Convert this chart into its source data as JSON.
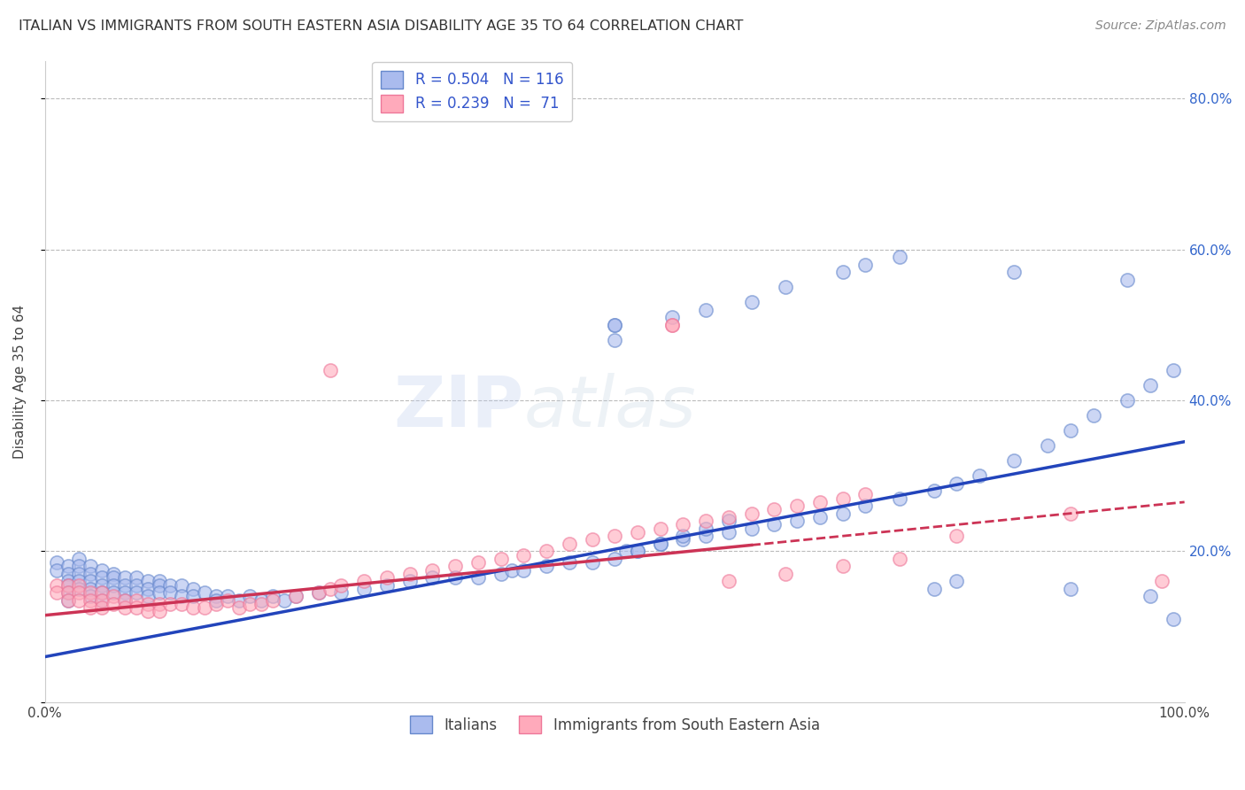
{
  "title": "ITALIAN VS IMMIGRANTS FROM SOUTH EASTERN ASIA DISABILITY AGE 35 TO 64 CORRELATION CHART",
  "source": "Source: ZipAtlas.com",
  "ylabel": "Disability Age 35 to 64",
  "xlim": [
    0.0,
    1.0
  ],
  "ylim": [
    0.0,
    0.85
  ],
  "ytick_vals": [
    0.0,
    0.2,
    0.4,
    0.6,
    0.8
  ],
  "ytick_labels": [
    "",
    "20.0%",
    "40.0%",
    "60.0%",
    "80.0%"
  ],
  "legend_blue_r": "0.504",
  "legend_blue_n": "116",
  "legend_pink_r": "0.239",
  "legend_pink_n": "71",
  "legend_label_blue": "Italians",
  "legend_label_pink": "Immigrants from South Eastern Asia",
  "blue_fill": "#AABBEE",
  "blue_edge": "#6688CC",
  "pink_fill": "#FFAABB",
  "pink_edge": "#EE7799",
  "blue_line_color": "#2244BB",
  "pink_line_color": "#CC3355",
  "title_color": "#333333",
  "source_color": "#888888",
  "axis_color": "#444444",
  "grid_color": "#BBBBBB",
  "right_tick_color": "#3366CC",
  "blue_x": [
    0.01,
    0.01,
    0.02,
    0.02,
    0.02,
    0.02,
    0.02,
    0.02,
    0.03,
    0.03,
    0.03,
    0.03,
    0.03,
    0.04,
    0.04,
    0.04,
    0.04,
    0.04,
    0.05,
    0.05,
    0.05,
    0.05,
    0.05,
    0.06,
    0.06,
    0.06,
    0.06,
    0.07,
    0.07,
    0.07,
    0.07,
    0.08,
    0.08,
    0.08,
    0.09,
    0.09,
    0.09,
    0.1,
    0.1,
    0.1,
    0.11,
    0.11,
    0.12,
    0.12,
    0.13,
    0.13,
    0.14,
    0.15,
    0.15,
    0.16,
    0.17,
    0.18,
    0.19,
    0.2,
    0.21,
    0.22,
    0.24,
    0.26,
    0.28,
    0.3,
    0.32,
    0.34,
    0.36,
    0.38,
    0.4,
    0.41,
    0.42,
    0.44,
    0.46,
    0.48,
    0.5,
    0.51,
    0.52,
    0.54,
    0.56,
    0.58,
    0.6,
    0.62,
    0.64,
    0.66,
    0.68,
    0.7,
    0.72,
    0.75,
    0.78,
    0.8,
    0.82,
    0.85,
    0.88,
    0.9,
    0.92,
    0.95,
    0.97,
    0.99,
    0.5,
    0.55,
    0.58,
    0.62,
    0.65,
    0.7,
    0.72,
    0.75,
    0.78,
    0.8,
    0.85,
    0.9,
    0.95,
    0.97,
    0.99,
    0.5,
    0.5,
    0.52,
    0.54,
    0.56,
    0.58,
    0.6
  ],
  "blue_y": [
    0.185,
    0.175,
    0.18,
    0.17,
    0.16,
    0.155,
    0.145,
    0.135,
    0.19,
    0.18,
    0.17,
    0.16,
    0.15,
    0.18,
    0.17,
    0.16,
    0.15,
    0.14,
    0.175,
    0.165,
    0.155,
    0.145,
    0.135,
    0.17,
    0.165,
    0.155,
    0.145,
    0.165,
    0.155,
    0.145,
    0.135,
    0.165,
    0.155,
    0.145,
    0.16,
    0.15,
    0.14,
    0.16,
    0.155,
    0.145,
    0.155,
    0.145,
    0.155,
    0.14,
    0.15,
    0.14,
    0.145,
    0.14,
    0.135,
    0.14,
    0.135,
    0.14,
    0.135,
    0.14,
    0.135,
    0.14,
    0.145,
    0.145,
    0.15,
    0.155,
    0.16,
    0.165,
    0.165,
    0.165,
    0.17,
    0.175,
    0.175,
    0.18,
    0.185,
    0.185,
    0.19,
    0.2,
    0.2,
    0.21,
    0.215,
    0.22,
    0.225,
    0.23,
    0.235,
    0.24,
    0.245,
    0.25,
    0.26,
    0.27,
    0.28,
    0.29,
    0.3,
    0.32,
    0.34,
    0.36,
    0.38,
    0.4,
    0.42,
    0.44,
    0.5,
    0.51,
    0.52,
    0.53,
    0.55,
    0.57,
    0.58,
    0.59,
    0.15,
    0.16,
    0.57,
    0.15,
    0.56,
    0.14,
    0.11,
    0.48,
    0.5,
    0.2,
    0.21,
    0.22,
    0.23,
    0.24
  ],
  "pink_x": [
    0.01,
    0.01,
    0.02,
    0.02,
    0.02,
    0.03,
    0.03,
    0.03,
    0.04,
    0.04,
    0.04,
    0.05,
    0.05,
    0.05,
    0.06,
    0.06,
    0.07,
    0.07,
    0.08,
    0.08,
    0.09,
    0.09,
    0.1,
    0.1,
    0.11,
    0.12,
    0.13,
    0.14,
    0.15,
    0.16,
    0.17,
    0.18,
    0.19,
    0.2,
    0.22,
    0.24,
    0.25,
    0.26,
    0.28,
    0.3,
    0.32,
    0.34,
    0.36,
    0.38,
    0.4,
    0.42,
    0.44,
    0.46,
    0.48,
    0.5,
    0.52,
    0.54,
    0.56,
    0.58,
    0.6,
    0.62,
    0.64,
    0.66,
    0.68,
    0.7,
    0.72,
    0.25,
    0.55,
    0.6,
    0.65,
    0.7,
    0.75,
    0.8,
    0.9,
    0.98,
    0.55
  ],
  "pink_y": [
    0.155,
    0.145,
    0.155,
    0.145,
    0.135,
    0.155,
    0.145,
    0.135,
    0.145,
    0.135,
    0.125,
    0.145,
    0.135,
    0.125,
    0.14,
    0.13,
    0.135,
    0.125,
    0.135,
    0.125,
    0.13,
    0.12,
    0.13,
    0.12,
    0.13,
    0.13,
    0.125,
    0.125,
    0.13,
    0.135,
    0.125,
    0.13,
    0.13,
    0.135,
    0.14,
    0.145,
    0.15,
    0.155,
    0.16,
    0.165,
    0.17,
    0.175,
    0.18,
    0.185,
    0.19,
    0.195,
    0.2,
    0.21,
    0.215,
    0.22,
    0.225,
    0.23,
    0.235,
    0.24,
    0.245,
    0.25,
    0.255,
    0.26,
    0.265,
    0.27,
    0.275,
    0.44,
    0.5,
    0.16,
    0.17,
    0.18,
    0.19,
    0.22,
    0.25,
    0.16,
    0.5
  ],
  "blue_trend_x0": 0.0,
  "blue_trend_y0": 0.06,
  "blue_trend_x1": 1.0,
  "blue_trend_y1": 0.345,
  "pink_trend_x0": 0.0,
  "pink_trend_y0": 0.115,
  "pink_trend_x1": 1.0,
  "pink_trend_y1": 0.265
}
